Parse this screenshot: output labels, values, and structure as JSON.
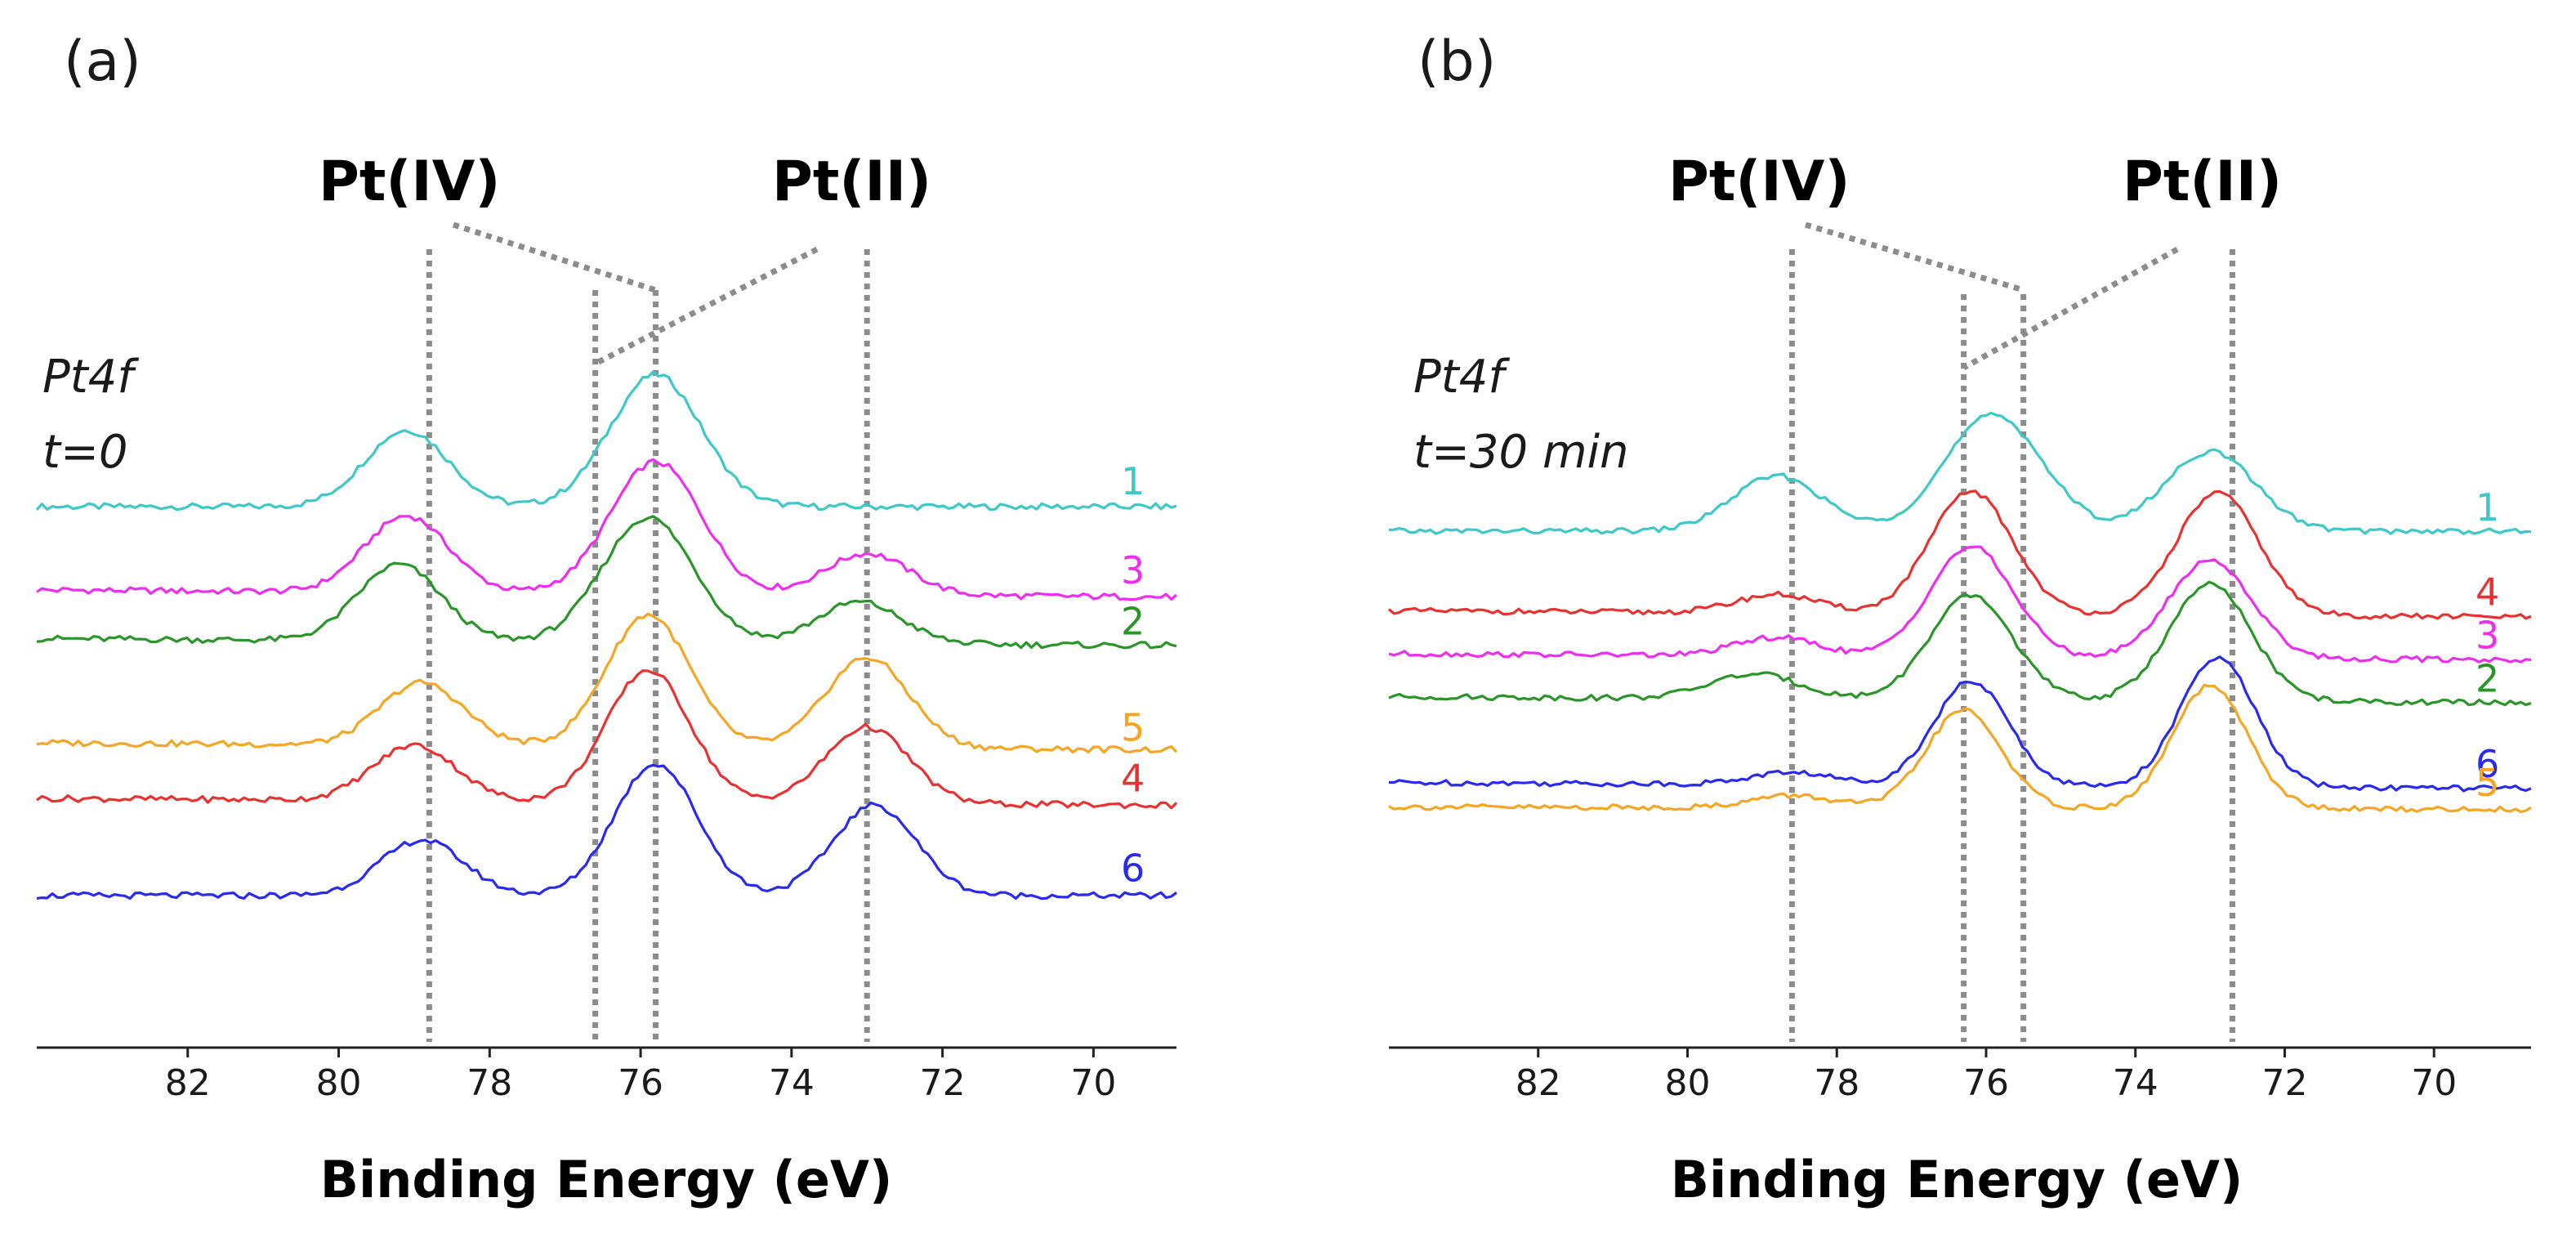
{
  "chart_data": [
    {
      "type": "line",
      "panel_label": "(a)",
      "sample_label_line1": "Pt4f",
      "sample_label_line2": "t=0",
      "peak_labels": [
        "Pt(IV)",
        "Pt(II)"
      ],
      "xlabel": "Binding Energy (eV)",
      "ylabel": "",
      "x_reversed": true,
      "xlim": [
        84.0,
        68.9
      ],
      "x_ticks": [
        82,
        80,
        78,
        76,
        74,
        72,
        70
      ],
      "y_ticks_shown": false,
      "grid": false,
      "reference_lines_eV": [
        78.8,
        76.6,
        75.8,
        73.0
      ],
      "series": [
        {
          "name": "1",
          "color": "#3fc8c8",
          "baseline": 0.0,
          "offset": 0.0,
          "peaks": [
            [
              79.1,
              0.55,
              0.55
            ],
            [
              75.8,
              0.95,
              0.6
            ],
            [
              73.0,
              0.0,
              0.5
            ]
          ]
        },
        {
          "name": "3",
          "color": "#ee2eee",
          "baseline": -0.6,
          "offset": -0.05,
          "peaks": [
            [
              79.1,
              0.55,
              0.55
            ],
            [
              75.8,
              0.95,
              0.6
            ],
            [
              73.0,
              0.3,
              0.55
            ]
          ]
        },
        {
          "name": "2",
          "color": "#2a962a",
          "baseline": -0.95,
          "offset": -0.05,
          "peaks": [
            [
              79.2,
              0.55,
              0.55
            ],
            [
              75.9,
              0.9,
              0.6
            ],
            [
              73.1,
              0.3,
              0.55
            ]
          ]
        },
        {
          "name": "5",
          "color": "#f5a623",
          "baseline": -1.7,
          "offset": -0.05,
          "peaks": [
            [
              78.9,
              0.45,
              0.55
            ],
            [
              75.9,
              0.95,
              0.55
            ],
            [
              73.0,
              0.65,
              0.55
            ]
          ]
        },
        {
          "name": "4",
          "color": "#e83232",
          "baseline": -2.1,
          "offset": -0.05,
          "peaks": [
            [
              79.0,
              0.4,
              0.55
            ],
            [
              75.9,
              0.95,
              0.55
            ],
            [
              73.0,
              0.55,
              0.55
            ]
          ]
        },
        {
          "name": "6",
          "color": "#2a2aee",
          "baseline": -2.8,
          "offset": 0.0,
          "peaks": [
            [
              78.9,
              0.4,
              0.55
            ],
            [
              75.8,
              0.95,
              0.55
            ],
            [
              72.9,
              0.65,
              0.55
            ]
          ]
        }
      ]
    },
    {
      "type": "line",
      "panel_label": "(b)",
      "sample_label_line1": "Pt4f",
      "sample_label_line2": "t=30 min",
      "peak_labels": [
        "Pt(IV)",
        "Pt(II)"
      ],
      "xlabel": "Binding Energy (eV)",
      "ylabel": "",
      "x_reversed": true,
      "xlim": [
        84.0,
        68.7
      ],
      "x_ticks": [
        82,
        80,
        78,
        76,
        74,
        72,
        70
      ],
      "y_ticks_shown": false,
      "grid": false,
      "reference_lines_eV": [
        78.6,
        76.3,
        75.5,
        72.7
      ],
      "series": [
        {
          "name": "1",
          "color": "#3fc8c8",
          "baseline": 0.0,
          "offset": 0.0,
          "peaks": [
            [
              78.8,
              0.45,
              0.6
            ],
            [
              75.9,
              0.95,
              0.65
            ],
            [
              73.0,
              0.65,
              0.6
            ]
          ]
        },
        {
          "name": "4",
          "color": "#e83232",
          "baseline": -0.65,
          "offset": -0.05,
          "peaks": [
            [
              78.8,
              0.15,
              0.55
            ],
            [
              76.2,
              1.0,
              0.55
            ],
            [
              72.9,
              1.0,
              0.55
            ]
          ]
        },
        {
          "name": "3",
          "color": "#ee2eee",
          "baseline": -1.0,
          "offset": -0.05,
          "peaks": [
            [
              78.8,
              0.15,
              0.55
            ],
            [
              76.2,
              0.9,
              0.55
            ],
            [
              73.0,
              0.8,
              0.55
            ]
          ]
        },
        {
          "name": "2",
          "color": "#2a962a",
          "baseline": -1.35,
          "offset": -0.05,
          "peaks": [
            [
              79.1,
              0.2,
              0.6
            ],
            [
              76.2,
              0.85,
              0.55
            ],
            [
              73.0,
              0.95,
              0.55
            ]
          ]
        },
        {
          "name": "6",
          "color": "#2a2aee",
          "baseline": -2.05,
          "offset": -0.05,
          "peaks": [
            [
              78.6,
              0.1,
              0.55
            ],
            [
              76.2,
              0.85,
              0.5
            ],
            [
              72.9,
              1.05,
              0.5
            ]
          ]
        },
        {
          "name": "5",
          "color": "#f5a623",
          "baseline": -2.25,
          "offset": -0.02,
          "peaks": [
            [
              78.6,
              0.1,
              0.55
            ],
            [
              76.3,
              0.8,
              0.5
            ],
            [
              73.0,
              1.0,
              0.5
            ]
          ]
        }
      ]
    }
  ]
}
